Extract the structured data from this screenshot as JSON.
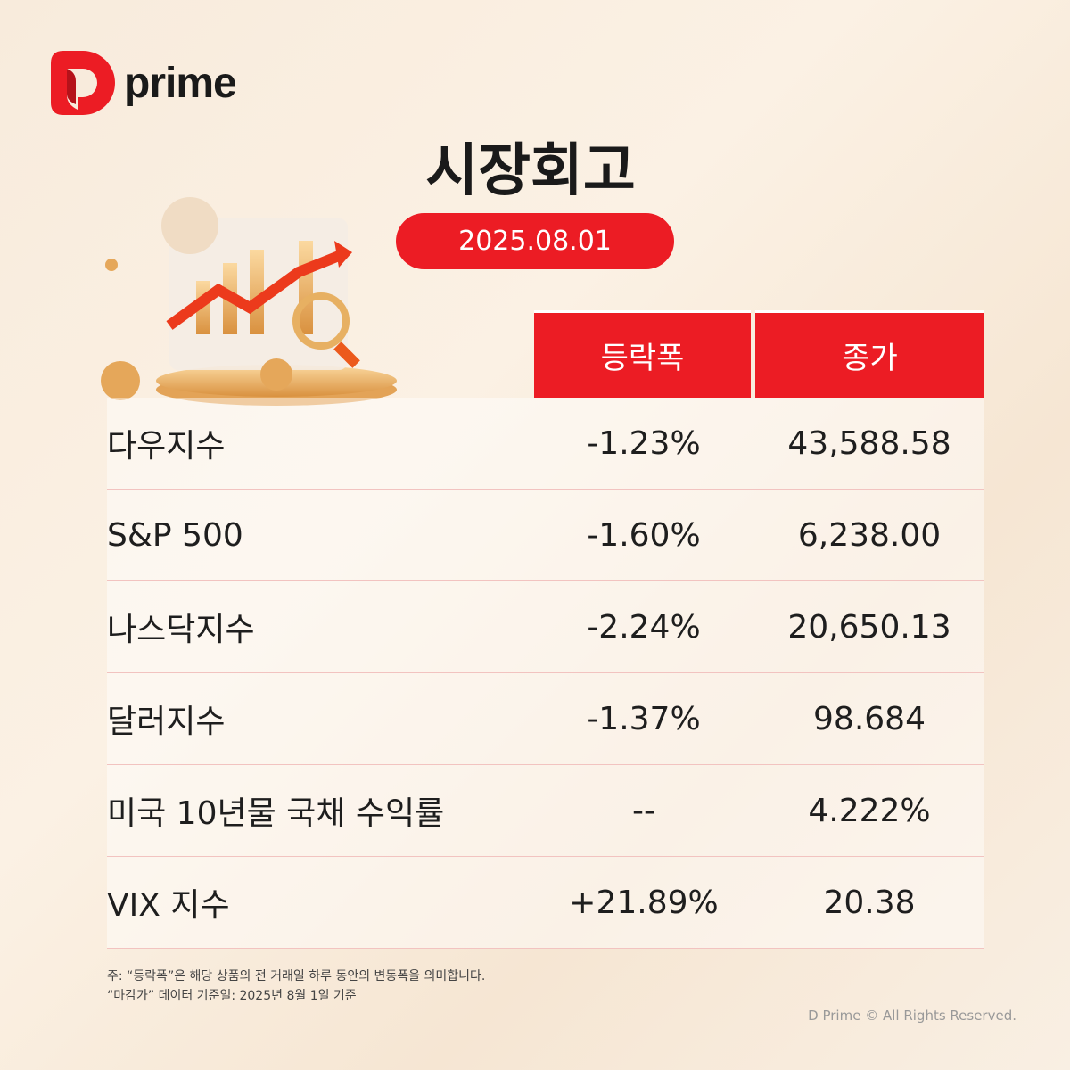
{
  "brand": {
    "logo_text": "prime",
    "accent": "#ec1c24"
  },
  "title": "시장회고",
  "date": "2025.08.01",
  "table": {
    "headers": [
      "등락폭",
      "종가"
    ],
    "rows": [
      {
        "name": "다우지수",
        "change": "-1.23%",
        "close": "43,588.58"
      },
      {
        "name": "S&P 500",
        "change": "-1.60%",
        "close": "6,238.00"
      },
      {
        "name": "나스닥지수",
        "change": "-2.24%",
        "close": "20,650.13"
      },
      {
        "name": "달러지수",
        "change": "-1.37%",
        "close": "98.684"
      },
      {
        "name": "미국 10년물 국채 수익률",
        "change": "--",
        "close": "4.222%"
      },
      {
        "name": "VIX 지수",
        "change": "+21.89%",
        "close": "20.38"
      }
    ]
  },
  "notes": [
    "주: “등락폭”은 해당 상품의 전 거래일 하루 동안의 변동폭을 의미합니다.",
    "“마감가” 데이터 기준일: 2025년 8월 1일 기준"
  ],
  "copyright": "D Prime © All Rights Reserved."
}
